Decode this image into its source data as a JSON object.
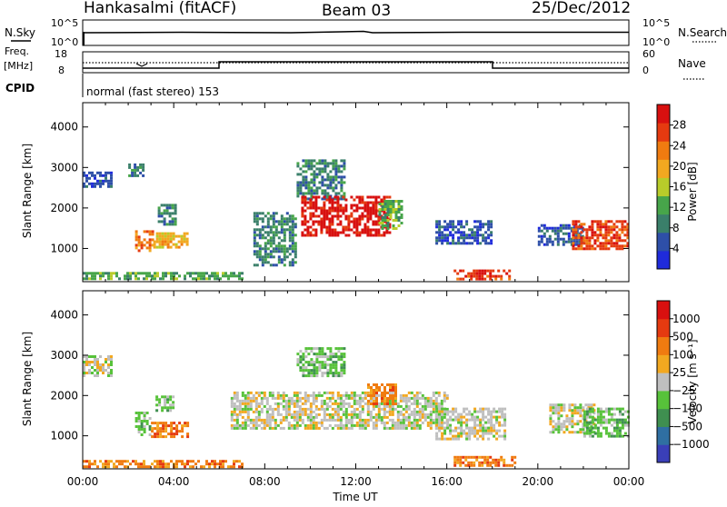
{
  "header": {
    "station": "Hankasalmi (fitACF)",
    "beam": "Beam 03",
    "date": "25/Dec/2012"
  },
  "strip": {
    "nsky_label": "N.Sky",
    "nsearch_label": "N.Search",
    "freq_label_1": "Freq.",
    "freq_label_2": "[MHz]",
    "nave_label": "Nave",
    "cpid_label": "CPID",
    "cpid_text": "normal (fast stereo) 153",
    "noise_ticks": [
      "10^5",
      "10^0"
    ],
    "noise_right_ticks": [
      "10^5",
      "10^0"
    ],
    "freq_ticks": [
      "18",
      "8"
    ],
    "nave_ticks": [
      "60",
      "0"
    ]
  },
  "colors": {
    "power": [
      "#1f2bdb",
      "#2e4fa8",
      "#3a7f6a",
      "#47a54a",
      "#b8cc2a",
      "#f2a820",
      "#f07b10",
      "#e53a10",
      "#d8100f"
    ],
    "velocity": [
      "#3a3fb8",
      "#2f6fa2",
      "#3f8f50",
      "#57c23a",
      "#bfbfbf",
      "#f2a820",
      "#f07b10",
      "#e53a10",
      "#d8100f"
    ]
  },
  "chart_data": [
    {
      "type": "heatmap",
      "name": "power",
      "xlabel": "",
      "ylabel": "Slant Range [km]",
      "ylim": [
        180,
        4600
      ],
      "y_ticks": [
        "4000",
        "3000",
        "2000",
        "1000"
      ],
      "colorbar_label": "Power [dB]",
      "colorbar_ticks": [
        "28",
        "24",
        "20",
        "16",
        "12",
        "8",
        "4"
      ],
      "regions": [
        {
          "x": [
            0.0,
            1.2
          ],
          "y": [
            2500,
            2900
          ],
          "level": 1
        },
        {
          "x": [
            2.0,
            2.7
          ],
          "y": [
            2800,
            3100
          ],
          "level": 2
        },
        {
          "x": [
            2.3,
            3.1
          ],
          "y": [
            950,
            1450
          ],
          "level": 6
        },
        {
          "x": [
            3.1,
            4.6
          ],
          "y": [
            1000,
            1400
          ],
          "level": 5
        },
        {
          "x": [
            3.3,
            4.1
          ],
          "y": [
            1600,
            2100
          ],
          "level": 2
        },
        {
          "x": [
            7.5,
            9.3
          ],
          "y": [
            600,
            1900
          ],
          "level": 2
        },
        {
          "x": [
            9.4,
            11.5
          ],
          "y": [
            2200,
            3200
          ],
          "level": 2
        },
        {
          "x": [
            9.6,
            13.5
          ],
          "y": [
            1300,
            2300
          ],
          "level": 8
        },
        {
          "x": [
            13.0,
            14.0
          ],
          "y": [
            1500,
            2200
          ],
          "level": 3
        },
        {
          "x": [
            15.5,
            18.0
          ],
          "y": [
            1100,
            1700
          ],
          "level": 1
        },
        {
          "x": [
            16.3,
            18.8
          ],
          "y": [
            260,
            480
          ],
          "level": 7
        },
        {
          "x": [
            20.0,
            22.0
          ],
          "y": [
            1100,
            1600
          ],
          "level": 1
        },
        {
          "x": [
            21.5,
            24.0
          ],
          "y": [
            1000,
            1700
          ],
          "level": 7
        },
        {
          "x": [
            0.0,
            7.0
          ],
          "y": [
            220,
            420
          ],
          "level": 3
        }
      ]
    },
    {
      "type": "heatmap",
      "name": "velocity",
      "xlabel": "Time UT",
      "ylabel": "Slant Range [km]",
      "ylim": [
        180,
        4600
      ],
      "y_ticks": [
        "4000",
        "3000",
        "2000",
        "1000"
      ],
      "x_ticks": [
        "00:00",
        "04:00",
        "08:00",
        "12:00",
        "16:00",
        "20:00",
        "00:00"
      ],
      "colorbar_label": "Velocity [m s⁻¹]",
      "colorbar_ticks": [
        "1000",
        "500",
        "100",
        "25",
        "−25",
        "−100",
        "−500",
        "−1000"
      ],
      "regions": [
        {
          "x": [
            0.0,
            1.2
          ],
          "y": [
            2500,
            3000
          ],
          "level": 4
        },
        {
          "x": [
            2.3,
            3.0
          ],
          "y": [
            1000,
            1600
          ],
          "level": 3
        },
        {
          "x": [
            3.0,
            4.6
          ],
          "y": [
            950,
            1350
          ],
          "level": 6
        },
        {
          "x": [
            3.2,
            4.0
          ],
          "y": [
            1600,
            2000
          ],
          "level": 3
        },
        {
          "x": [
            6.5,
            16.0
          ],
          "y": [
            1200,
            2100
          ],
          "level": 4
        },
        {
          "x": [
            9.4,
            11.5
          ],
          "y": [
            2500,
            3200
          ],
          "level": 3
        },
        {
          "x": [
            12.5,
            13.8
          ],
          "y": [
            1800,
            2300
          ],
          "level": 6
        },
        {
          "x": [
            15.5,
            18.5
          ],
          "y": [
            900,
            1700
          ],
          "level": 4
        },
        {
          "x": [
            16.3,
            19.0
          ],
          "y": [
            260,
            500
          ],
          "level": 6
        },
        {
          "x": [
            20.5,
            22.5
          ],
          "y": [
            1100,
            1800
          ],
          "level": 4
        },
        {
          "x": [
            22.0,
            24.0
          ],
          "y": [
            1000,
            1700
          ],
          "level": 3
        },
        {
          "x": [
            0.0,
            7.0
          ],
          "y": [
            220,
            400
          ],
          "level": 6
        }
      ]
    }
  ]
}
